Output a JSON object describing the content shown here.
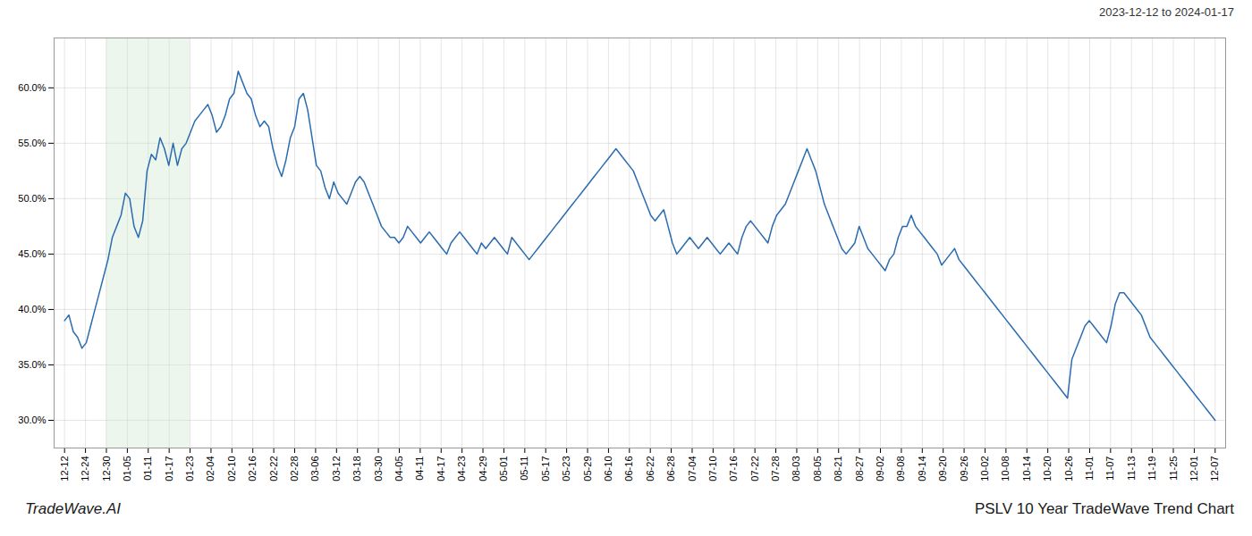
{
  "chart_data": {
    "type": "line",
    "title": "PSLV 10 Year TradeWave Trend Chart",
    "subtitle": "2023-12-12 to 2024-01-17",
    "caption": "TradeWave.AI",
    "color": "#2b6cb0",
    "grid": true,
    "spans": [
      {
        "x": [
          2,
          6
        ],
        "color": "#c8e6c9"
      }
    ],
    "xlim": [
      -0.5,
      55.5
    ],
    "xticks": [
      {
        "value": 0,
        "label": "12-12"
      },
      {
        "value": 1,
        "label": "12-24"
      },
      {
        "value": 2,
        "label": "12-30"
      },
      {
        "value": 3,
        "label": "01-05"
      },
      {
        "value": 4,
        "label": "01-11"
      },
      {
        "value": 5,
        "label": "01-17"
      },
      {
        "value": 6,
        "label": "01-23"
      },
      {
        "value": 7,
        "label": "02-04"
      },
      {
        "value": 8,
        "label": "02-10"
      },
      {
        "value": 9,
        "label": "02-16"
      },
      {
        "value": 10,
        "label": "02-22"
      },
      {
        "value": 11,
        "label": "02-28"
      },
      {
        "value": 12,
        "label": "03-06"
      },
      {
        "value": 13,
        "label": "03-12"
      },
      {
        "value": 14,
        "label": "03-18"
      },
      {
        "value": 15,
        "label": "03-30"
      },
      {
        "value": 16,
        "label": "04-05"
      },
      {
        "value": 17,
        "label": "04-11"
      },
      {
        "value": 18,
        "label": "04-17"
      },
      {
        "value": 19,
        "label": "04-23"
      },
      {
        "value": 20,
        "label": "04-29"
      },
      {
        "value": 21,
        "label": "05-01"
      },
      {
        "value": 22,
        "label": "05-11"
      },
      {
        "value": 23,
        "label": "05-17"
      },
      {
        "value": 24,
        "label": "05-23"
      },
      {
        "value": 25,
        "label": "05-29"
      },
      {
        "value": 26,
        "label": "06-10"
      },
      {
        "value": 27,
        "label": "06-16"
      },
      {
        "value": 28,
        "label": "06-22"
      },
      {
        "value": 29,
        "label": "06-28"
      },
      {
        "value": 30,
        "label": "07-04"
      },
      {
        "value": 31,
        "label": "07-10"
      },
      {
        "value": 32,
        "label": "07-16"
      },
      {
        "value": 33,
        "label": "07-22"
      },
      {
        "value": 34,
        "label": "07-28"
      },
      {
        "value": 35,
        "label": "08-03"
      },
      {
        "value": 36,
        "label": "08-05"
      },
      {
        "value": 37,
        "label": "08-21"
      },
      {
        "value": 38,
        "label": "08-27"
      },
      {
        "value": 39,
        "label": "09-02"
      },
      {
        "value": 40,
        "label": "09-08"
      },
      {
        "value": 41,
        "label": "09-14"
      },
      {
        "value": 42,
        "label": "09-20"
      },
      {
        "value": 43,
        "label": "09-26"
      },
      {
        "value": 44,
        "label": "10-02"
      },
      {
        "value": 45,
        "label": "10-08"
      },
      {
        "value": 46,
        "label": "10-14"
      },
      {
        "value": 47,
        "label": "10-20"
      },
      {
        "value": 48,
        "label": "10-26"
      },
      {
        "value": 49,
        "label": "11-01"
      },
      {
        "value": 50,
        "label": "11-07"
      },
      {
        "value": 51,
        "label": "11-13"
      },
      {
        "value": 52,
        "label": "11-19"
      },
      {
        "value": 53,
        "label": "11-25"
      },
      {
        "value": 54,
        "label": "12-01"
      },
      {
        "value": 55,
        "label": "12-07"
      }
    ],
    "ylim": [
      27.5,
      64.5
    ],
    "yticks": [
      {
        "value": 30.0,
        "label": "30.0%"
      },
      {
        "value": 35.0,
        "label": "35.0%"
      },
      {
        "value": 40.0,
        "label": "40.0%"
      },
      {
        "value": 45.0,
        "label": "45.0%"
      },
      {
        "value": 50.0,
        "label": "50.0%"
      },
      {
        "value": 55.0,
        "label": "55.0%"
      },
      {
        "value": 60.0,
        "label": "60.0%"
      }
    ],
    "x": [
      0,
      0.2075,
      0.4151,
      0.6226,
      0.8302,
      1.0377,
      1.2453,
      1.4528,
      1.6604,
      1.8679,
      2.0755,
      2.283,
      2.4906,
      2.6981,
      2.9057,
      3.1132,
      3.3208,
      3.5283,
      3.7358,
      3.9434,
      4.1509,
      4.3585,
      4.566,
      4.7736,
      4.9811,
      5.1887,
      5.3962,
      5.6038,
      5.8113,
      6.0189,
      6.2264,
      6.434,
      6.6415,
      6.8491,
      7.0566,
      7.2642,
      7.4717,
      7.6792,
      7.8868,
      8.0943,
      8.3019,
      8.5094,
      8.717,
      8.9245,
      9.1321,
      9.3396,
      9.5472,
      9.7547,
      9.9623,
      10.1698,
      10.3774,
      10.5849,
      10.7925,
      11,
      11.2075,
      11.4151,
      11.6226,
      11.8302,
      12.0377,
      12.2453,
      12.4528,
      12.6604,
      12.8679,
      13.0755,
      13.283,
      13.4906,
      13.6981,
      13.9057,
      14.1132,
      14.3208,
      14.5283,
      14.7358,
      14.9434,
      15.1509,
      15.3585,
      15.566,
      15.7736,
      15.9811,
      16.1887,
      16.3962,
      16.6038,
      16.8113,
      17.0189,
      17.2264,
      17.434,
      17.6415,
      17.8491,
      18.0566,
      18.2642,
      18.4717,
      18.6792,
      18.8868,
      19.0943,
      19.3019,
      19.5094,
      19.717,
      19.9245,
      20.1321,
      20.3396,
      20.5472,
      20.7547,
      20.9623,
      21.1698,
      21.3774,
      21.5849,
      21.7925,
      22,
      22.2075,
      22.4151,
      22.6226,
      22.8302,
      23.0377,
      23.2453,
      23.4528,
      23.6604,
      23.8679,
      24.0755,
      24.283,
      24.4906,
      24.6981,
      24.9057,
      25.1132,
      25.3208,
      25.5283,
      25.7358,
      25.9434,
      26.1509,
      26.3585,
      26.566,
      26.7736,
      26.9811,
      27.1887,
      27.3962,
      27.6038,
      27.8113,
      28.0189,
      28.2264,
      28.434,
      28.6415,
      28.8491,
      29.0566,
      29.2642,
      29.4717,
      29.6792,
      29.8868,
      30.0943,
      30.3019,
      30.5094,
      30.717,
      30.9245,
      31.1321,
      31.3396,
      31.5472,
      31.7547,
      31.9623,
      32.1698,
      32.3774,
      32.5849,
      32.7925,
      33,
      33.2075,
      33.4151,
      33.6226,
      33.8302,
      34.0377,
      34.2453,
      34.4528,
      34.6604,
      34.8679,
      35.0755,
      35.283,
      35.4906,
      35.6981,
      35.9057,
      36.1132,
      36.3208,
      36.5283,
      36.7358,
      36.9434,
      37.1509,
      37.3585,
      37.566,
      37.7736,
      37.9811,
      38.1887,
      38.3962,
      38.6038,
      38.8113,
      39.0189,
      39.2264,
      39.434,
      39.6415,
      39.8491,
      40.0566,
      40.2642,
      40.4717,
      40.6792,
      40.8868,
      41.0943,
      41.3019,
      41.5094,
      41.717,
      41.9245,
      42.1321,
      42.3396,
      42.5472,
      42.7547,
      42.9623,
      43.1698,
      43.3774,
      43.5849,
      43.7925,
      44,
      44.2075,
      44.4151,
      44.6226,
      44.8302,
      45.0377,
      45.2453,
      45.4528,
      45.6604,
      45.8679,
      46.0755,
      46.283,
      46.4906,
      46.6981,
      46.9057,
      47.1132,
      47.3208,
      47.5283,
      47.7358,
      47.9434,
      48.1509,
      48.3585,
      48.566,
      48.7736,
      48.9811,
      49.1887,
      49.3962,
      49.6038,
      49.8113,
      50.0189,
      50.2264,
      50.434,
      50.6415,
      50.8491,
      51.0566,
      51.2642,
      51.4717,
      51.6792,
      51.8868,
      52.0943,
      52.3019,
      52.5094,
      52.717,
      52.9245,
      53.1321,
      53.3396,
      53.5472,
      53.7547,
      53.9623,
      54.1698,
      54.3774,
      54.5849,
      54.7925,
      55
    ],
    "values": [
      39.0,
      39.5,
      38.0,
      37.5,
      36.5,
      37.0,
      38.5,
      40.0,
      41.5,
      43.0,
      44.5,
      46.5,
      47.5,
      48.5,
      50.5,
      50.0,
      47.5,
      46.5,
      48.0,
      52.5,
      54.0,
      53.5,
      55.5,
      54.5,
      53.0,
      55.0,
      53.0,
      54.5,
      55.0,
      56.0,
      57.0,
      57.5,
      58.0,
      58.5,
      57.5,
      56.0,
      56.5,
      57.5,
      59.0,
      59.5,
      61.5,
      60.5,
      59.5,
      59.0,
      57.5,
      56.5,
      57.0,
      56.5,
      54.5,
      53.0,
      52.0,
      53.5,
      55.5,
      56.5,
      59.0,
      59.5,
      58.0,
      55.5,
      53.0,
      52.5,
      51.0,
      50.0,
      51.5,
      50.5,
      50.0,
      49.5,
      50.5,
      51.5,
      52.0,
      51.5,
      50.5,
      49.5,
      48.5,
      47.5,
      47.0,
      46.5,
      46.5,
      46.0,
      46.5,
      47.5,
      47.0,
      46.5,
      46.0,
      46.5,
      47.0,
      46.5,
      46.0,
      45.5,
      45.0,
      46.0,
      46.5,
      47.0,
      46.5,
      46.0,
      45.5,
      45.0,
      46.0,
      45.5,
      46.0,
      46.5,
      46.0,
      45.5,
      45.0,
      46.5,
      46.0,
      45.5,
      45.0,
      44.5,
      45.0,
      45.5,
      46.0,
      46.5,
      47.0,
      47.5,
      48.0,
      48.5,
      49.0,
      49.5,
      50.0,
      50.5,
      51.0,
      51.5,
      52.0,
      52.5,
      53.0,
      53.5,
      54.0,
      54.5,
      54.0,
      53.5,
      53.0,
      52.5,
      51.5,
      50.5,
      49.5,
      48.5,
      48.0,
      48.5,
      49.0,
      47.5,
      46.0,
      45.0,
      45.5,
      46.0,
      46.5,
      46.0,
      45.5,
      46.0,
      46.5,
      46.0,
      45.5,
      45.0,
      45.5,
      46.0,
      45.5,
      45.0,
      46.5,
      47.5,
      48.0,
      47.5,
      47.0,
      46.5,
      46.0,
      47.5,
      48.5,
      49.0,
      49.5,
      50.5,
      51.5,
      52.5,
      53.5,
      54.5,
      53.5,
      52.5,
      51.0,
      49.5,
      48.5,
      47.5,
      46.5,
      45.5,
      45.0,
      45.5,
      46.0,
      47.5,
      46.5,
      45.5,
      45.0,
      44.5,
      44.0,
      43.5,
      44.5,
      45.0,
      46.5,
      47.5,
      47.5,
      48.5,
      47.5,
      47.0,
      46.5,
      46.0,
      45.5,
      45.0,
      44.0,
      44.5,
      45.0,
      45.5,
      44.5,
      44.0,
      43.5,
      43.0,
      42.5,
      42.0,
      41.5,
      41.0,
      40.5,
      40.0,
      39.5,
      39.0,
      38.5,
      38.0,
      37.5,
      37.0,
      36.5,
      36.0,
      35.5,
      35.0,
      34.5,
      34.0,
      33.5,
      33.0,
      32.5,
      32.0,
      35.5,
      36.5,
      37.5,
      38.5,
      39.0,
      38.5,
      38.0,
      37.5,
      37.0,
      38.5,
      40.5,
      41.5,
      41.5,
      41.0,
      40.5,
      40.0,
      39.5,
      38.5,
      37.5,
      37.0,
      36.5,
      36.0,
      35.5,
      35.0,
      34.5,
      34.0,
      33.5,
      33.0,
      32.5,
      32.0,
      31.5,
      31.0,
      30.5,
      30.0
    ]
  }
}
